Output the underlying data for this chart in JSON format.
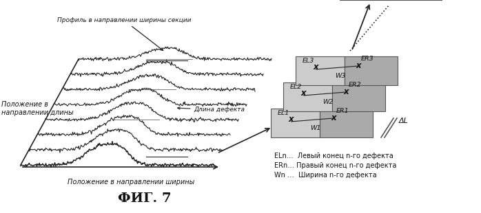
{
  "title": "ФИГ. 7",
  "bg_color": "#ffffff",
  "label_profile": "Профиль в направлении ширины секции",
  "label_length": "Положение в\nнаправлении длины",
  "label_width": "Положение в направлении ширины",
  "label_defect_length": "Длина дефекта",
  "legend_EL": "ELn…  Левый конец n-го дефекта",
  "legend_ER": "ERn… Правый конец n-го дефекта",
  "legend_W": "Wn …  Ширина n-го дефекта",
  "delta_L": "ΔL",
  "box_light": "#cccccc",
  "box_dark": "#aaaaaa",
  "box_top": "#bbbbbb",
  "color_lines": "#222222"
}
